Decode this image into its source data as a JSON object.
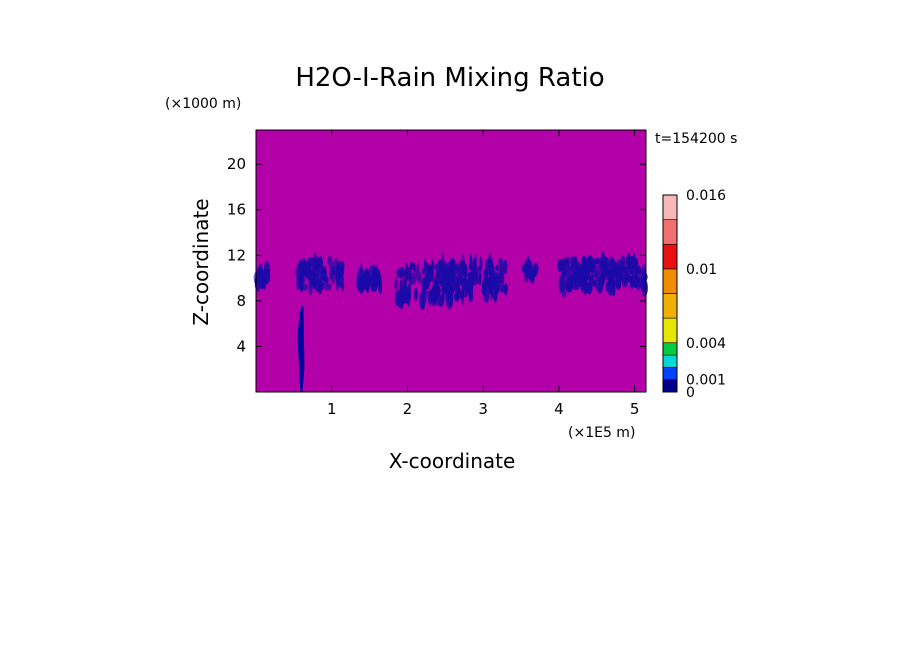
{
  "chart_data": {
    "type": "heatmap",
    "title": "H2O-I-Rain Mixing Ratio",
    "xlabel": "X-coordinate",
    "ylabel": "Z-coordinate",
    "x_unit": "(×1E5 m)",
    "y_unit": "(×1000 m)",
    "time_label": "t=154200 s",
    "xlim": [
      0,
      5.15
    ],
    "ylim": [
      0,
      23
    ],
    "x_ticks": [
      1,
      2,
      3,
      4,
      5
    ],
    "y_ticks": [
      4,
      8,
      12,
      16,
      20
    ],
    "colorbar": {
      "levels": [
        0,
        0.001,
        0.002,
        0.003,
        0.004,
        0.006,
        0.008,
        0.01,
        0.012,
        0.014,
        0.016
      ],
      "labels": [
        {
          "value": 0,
          "text": "0"
        },
        {
          "value": 0.001,
          "text": "0.001"
        },
        {
          "value": 0.004,
          "text": "0.004"
        },
        {
          "value": 0.01,
          "text": "0.01"
        },
        {
          "value": 0.016,
          "text": "0.016"
        }
      ],
      "colors": [
        "#00008c",
        "#0040ff",
        "#00d8d8",
        "#00cc44",
        "#e6e600",
        "#f0b000",
        "#f08c00",
        "#e81010",
        "#f07070",
        "#f8b8b8"
      ]
    },
    "background_color": "#b400a8",
    "field_color": "#1a0aa8",
    "regions": [
      {
        "x": [
          0.0,
          0.15
        ],
        "z": [
          9.0,
          11.2
        ]
      },
      {
        "x": [
          0.55,
          1.15
        ],
        "z": [
          8.2,
          12.2
        ]
      },
      {
        "x": [
          1.35,
          1.65
        ],
        "z": [
          8.6,
          11.0
        ]
      },
      {
        "x": [
          1.85,
          2.6
        ],
        "z": [
          6.6,
          12.0
        ]
      },
      {
        "x": [
          2.45,
          3.3
        ],
        "z": [
          7.0,
          12.3
        ]
      },
      {
        "x": [
          3.55,
          3.7
        ],
        "z": [
          9.5,
          11.5
        ]
      },
      {
        "x": [
          4.0,
          5.15
        ],
        "z": [
          8.0,
          12.2
        ]
      }
    ],
    "column": {
      "x": 0.6,
      "z": [
        0.0,
        8.3
      ]
    }
  }
}
